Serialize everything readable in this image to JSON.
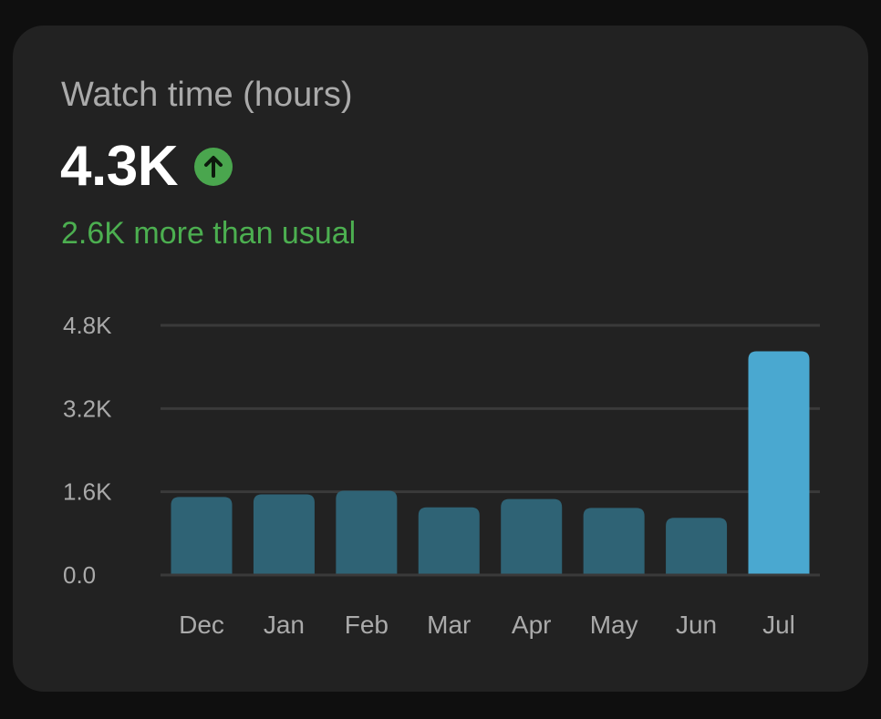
{
  "card": {
    "title": "Watch time (hours)",
    "value": "4.3K",
    "trend_icon": "arrow-up-icon",
    "comparison": "2.6K more than usual"
  },
  "colors": {
    "background": "#0f0f0f",
    "card": "#222222",
    "title": "#aaaaaa",
    "value": "#ffffff",
    "positive": "#4caf50",
    "bar_regular": "#2f6375",
    "bar_highlight": "#4aa8d0",
    "gridline": "#3a3a3a"
  },
  "chart_data": {
    "type": "bar",
    "categories": [
      "Dec",
      "Jan",
      "Feb",
      "Mar",
      "Apr",
      "May",
      "Jun",
      "Jul"
    ],
    "values": [
      1500,
      1550,
      1620,
      1300,
      1460,
      1290,
      1100,
      4300
    ],
    "highlight_index": 7,
    "title": "",
    "xlabel": "",
    "ylabel": "",
    "ylim": [
      0,
      4800
    ],
    "yticks": [
      0,
      1600,
      3200,
      4800
    ],
    "ytick_labels": [
      "0.0",
      "1.6K",
      "3.2K",
      "4.8K"
    ],
    "grid": true,
    "legend": "none"
  }
}
